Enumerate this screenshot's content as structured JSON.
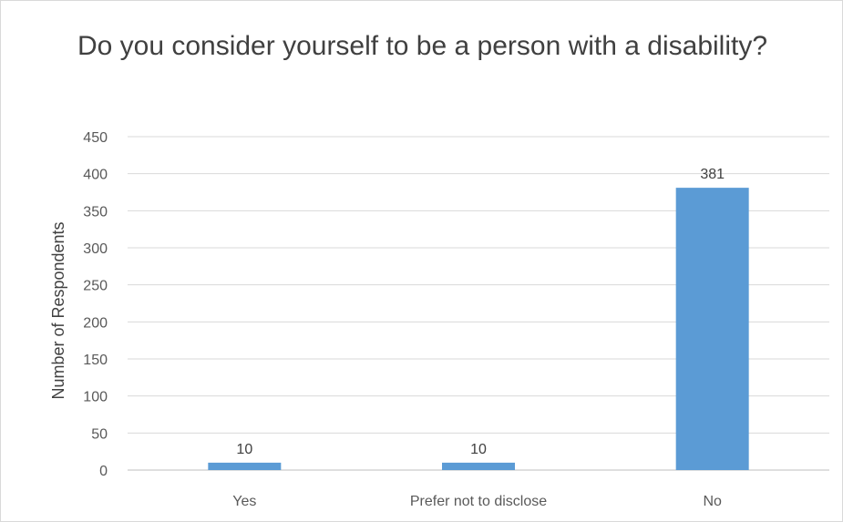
{
  "chart_data": {
    "type": "bar",
    "title": "Do you consider yourself to be a person with a disability?",
    "xlabel": "",
    "ylabel": "Number of Respondents",
    "categories": [
      "Yes",
      "Prefer not to disclose",
      "No"
    ],
    "values": [
      10,
      10,
      381
    ],
    "data_labels": [
      "10",
      "10",
      "381"
    ],
    "ylim": [
      0,
      450
    ],
    "yticks": [
      0,
      50,
      100,
      150,
      200,
      250,
      300,
      350,
      400,
      450
    ],
    "ytick_labels": [
      "0",
      "50",
      "100",
      "150",
      "200",
      "250",
      "300",
      "350",
      "400",
      "450"
    ],
    "grid": true,
    "legend": "none",
    "bar_color": "#5b9bd5"
  }
}
